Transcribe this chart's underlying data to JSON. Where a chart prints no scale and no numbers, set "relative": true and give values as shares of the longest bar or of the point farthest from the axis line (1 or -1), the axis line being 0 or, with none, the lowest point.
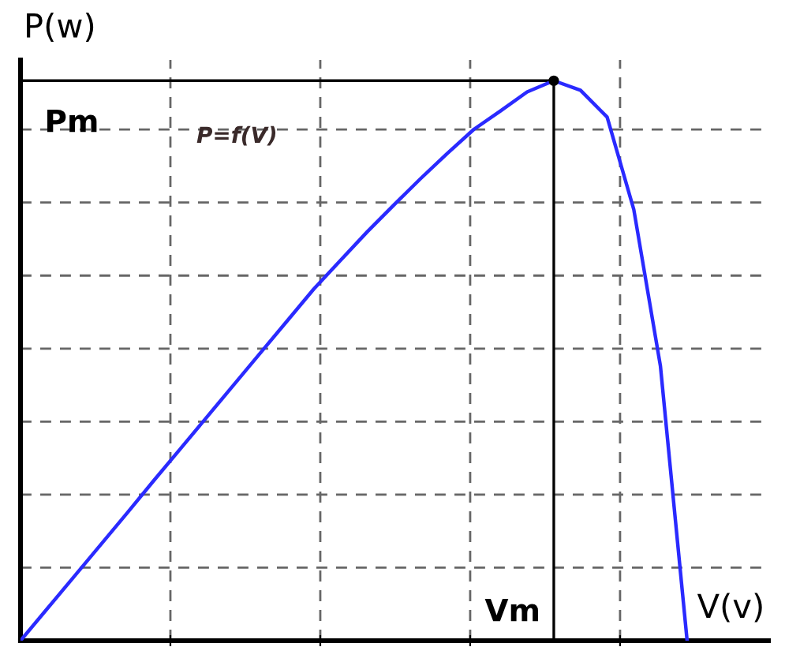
{
  "chart_data": {
    "type": "line",
    "relative": true,
    "xlabel": "V(v)",
    "ylabel": "P(w)",
    "categories": [
      null,
      null,
      null,
      null,
      null,
      null,
      null,
      null,
      null,
      null,
      null,
      null,
      null,
      null,
      null,
      null,
      null,
      null,
      null,
      null,
      null,
      null,
      null,
      null,
      null,
      null
    ],
    "series": [
      {
        "color": "#2a2aff",
        "values": [
          0,
          0.057,
          0.114,
          0.171,
          0.228,
          0.286,
          0.343,
          0.4,
          0.457,
          0.514,
          0.571,
          0.628,
          0.679,
          0.73,
          0.778,
          0.825,
          0.87,
          0.913,
          0.946,
          0.98,
          1.0,
          0.983,
          0.935,
          0.77,
          0.49,
          0
        ]
      }
    ],
    "ref_lines": [
      {
        "axis": "y",
        "value": 1.0,
        "label": "Pm",
        "color": "#000000",
        "line_style": "solid"
      }
    ],
    "annotations": [
      "P=f(V)",
      "Vm"
    ],
    "grid": true,
    "line_style": "solid",
    "marker": "none"
  }
}
